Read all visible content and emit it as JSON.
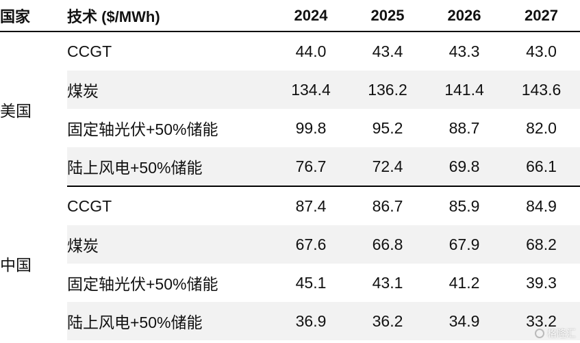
{
  "header": {
    "country": "国家",
    "tech": "技术 ($/MWh)",
    "years": [
      "2024",
      "2025",
      "2026",
      "2027"
    ]
  },
  "groups": [
    {
      "country": "美国",
      "rows": [
        {
          "tech": "CCGT",
          "values": [
            "44.0",
            "43.4",
            "43.3",
            "43.0"
          ]
        },
        {
          "tech": "煤炭",
          "values": [
            "134.4",
            "136.2",
            "141.4",
            "143.6"
          ]
        },
        {
          "tech": "固定轴光伏+50%储能",
          "values": [
            "99.8",
            "95.2",
            "88.7",
            "82.0"
          ]
        },
        {
          "tech": "陆上风电+50%储能",
          "values": [
            "76.7",
            "72.4",
            "69.8",
            "66.1"
          ]
        }
      ]
    },
    {
      "country": "中国",
      "rows": [
        {
          "tech": "CCGT",
          "values": [
            "87.4",
            "86.7",
            "85.9",
            "84.9"
          ]
        },
        {
          "tech": "煤炭",
          "values": [
            "67.6",
            "66.8",
            "67.9",
            "68.2"
          ]
        },
        {
          "tech": "固定轴光伏+50%储能",
          "values": [
            "45.1",
            "43.1",
            "41.2",
            "39.3"
          ]
        },
        {
          "tech": "陆上风电+50%储能",
          "values": [
            "36.9",
            "36.2",
            "34.9",
            "33.2"
          ]
        }
      ]
    }
  ],
  "chart_data": {
    "type": "table",
    "columns": [
      "国家",
      "技术 ($/MWh)",
      "2024",
      "2025",
      "2026",
      "2027"
    ],
    "rows": [
      [
        "美国",
        "CCGT",
        44.0,
        43.4,
        43.3,
        43.0
      ],
      [
        "美国",
        "煤炭",
        134.4,
        136.2,
        141.4,
        143.6
      ],
      [
        "美国",
        "固定轴光伏+50%储能",
        99.8,
        95.2,
        88.7,
        82.0
      ],
      [
        "美国",
        "陆上风电+50%储能",
        76.7,
        72.4,
        69.8,
        66.1
      ],
      [
        "中国",
        "CCGT",
        87.4,
        86.7,
        85.9,
        84.9
      ],
      [
        "中国",
        "煤炭",
        67.6,
        66.8,
        67.9,
        68.2
      ],
      [
        "中国",
        "固定轴光伏+50%储能",
        45.1,
        43.1,
        41.2,
        39.3
      ],
      [
        "中国",
        "陆上风电+50%储能",
        36.9,
        36.2,
        34.9,
        33.2
      ]
    ]
  },
  "watermark": {
    "text": "格隆汇",
    "icon": "watermark-logo-icon"
  }
}
